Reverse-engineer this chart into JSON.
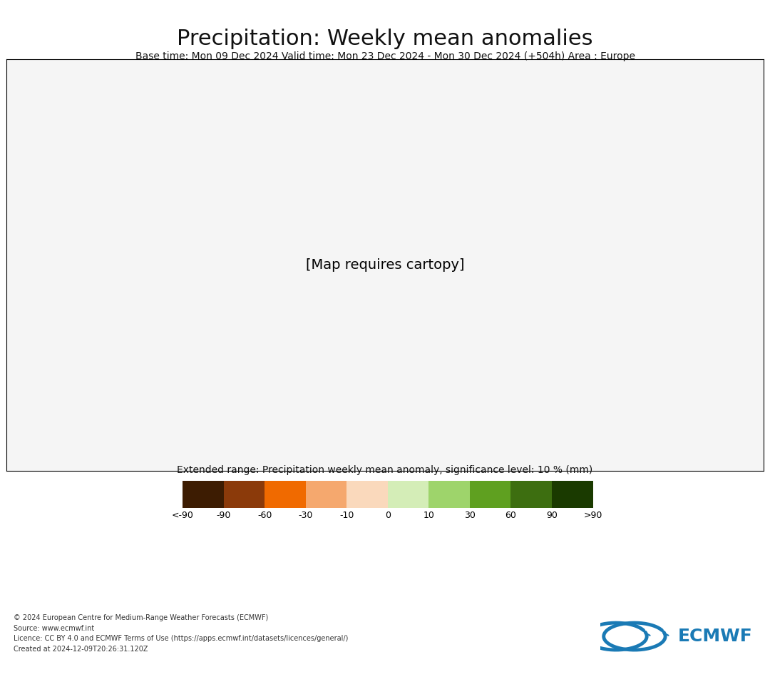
{
  "title": "Precipitation: Weekly mean anomalies",
  "subtitle": "Base time: Mon 09 Dec 2024 Valid time: Mon 23 Dec 2024 - Mon 30 Dec 2024 (+504h) Area : Europe",
  "colorbar_title": "Extended range: Precipitation weekly mean anomaly, significance level: 10 % (mm)",
  "colorbar_labels": [
    "<-90",
    "-90",
    "-60",
    "-30",
    "-10",
    "0",
    "10",
    "30",
    "60",
    "90",
    ">90"
  ],
  "colorbar_colors": [
    "#3d1c02",
    "#8b3a0a",
    "#f06a00",
    "#f5a86e",
    "#fad9bc",
    "#d4edb7",
    "#9ed46b",
    "#5fa020",
    "#3d6e10",
    "#1a3a00"
  ],
  "footer_left": "© 2024 European Centre for Medium-Range Weather Forecasts (ECMWF)\nSource: www.ecmwf.int\nLicence: CC BY 4.0 and ECMWF Terms of Use (https://apps.ecmwf.int/datasets/licences/general/)\nCreated at 2024-12-09T20:26:31.120Z",
  "bg_color": "#ffffff",
  "title_fontsize": 22,
  "subtitle_fontsize": 10,
  "colorbar_title_fontsize": 10,
  "colorbar_label_fontsize": 9,
  "footer_fontsize": 7,
  "logo_color": "#1a7ab5",
  "logo_text": "ECMWF"
}
